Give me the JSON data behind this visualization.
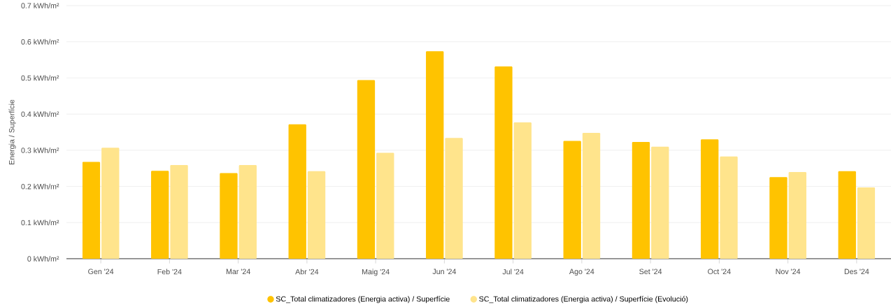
{
  "chart_data": {
    "type": "bar",
    "ylabel": "Energia / Superfície",
    "categories": [
      "Gen '24",
      "Feb '24",
      "Mar '24",
      "Abr '24",
      "Maig '24",
      "Jun '24",
      "Jul '24",
      "Ago '24",
      "Set '24",
      "Oct '24",
      "Nov '24",
      "Des '24"
    ],
    "series": [
      {
        "name": "SC_Total climatizadores (Energia activa) / Superfície",
        "color": "#ffc300",
        "values": [
          0.268,
          0.243,
          0.237,
          0.372,
          0.494,
          0.574,
          0.532,
          0.326,
          0.323,
          0.33,
          0.226,
          0.242
        ]
      },
      {
        "name": "SC_Total climatizadores (Energia activa) / Superfície (Evolució)",
        "color": "#ffe48c",
        "values": [
          0.307,
          0.259,
          0.259,
          0.242,
          0.293,
          0.334,
          0.377,
          0.348,
          0.31,
          0.283,
          0.24,
          0.197
        ]
      }
    ],
    "ylim": [
      0,
      0.7
    ],
    "yticks": [
      {
        "value": 0,
        "label": "0 kWh/m²"
      },
      {
        "value": 0.1,
        "label": "0.1 kWh/m²"
      },
      {
        "value": 0.2,
        "label": "0.2 kWh/m²"
      },
      {
        "value": 0.3,
        "label": "0.3 kWh/m²"
      },
      {
        "value": 0.4,
        "label": "0.4 kWh/m²"
      },
      {
        "value": 0.5,
        "label": "0.5 kWh/m²"
      },
      {
        "value": 0.6,
        "label": "0.6 kWh/m²"
      },
      {
        "value": 0.7,
        "label": "0.7 kWh/m²"
      }
    ],
    "grid": "y",
    "legend": "bottom"
  }
}
